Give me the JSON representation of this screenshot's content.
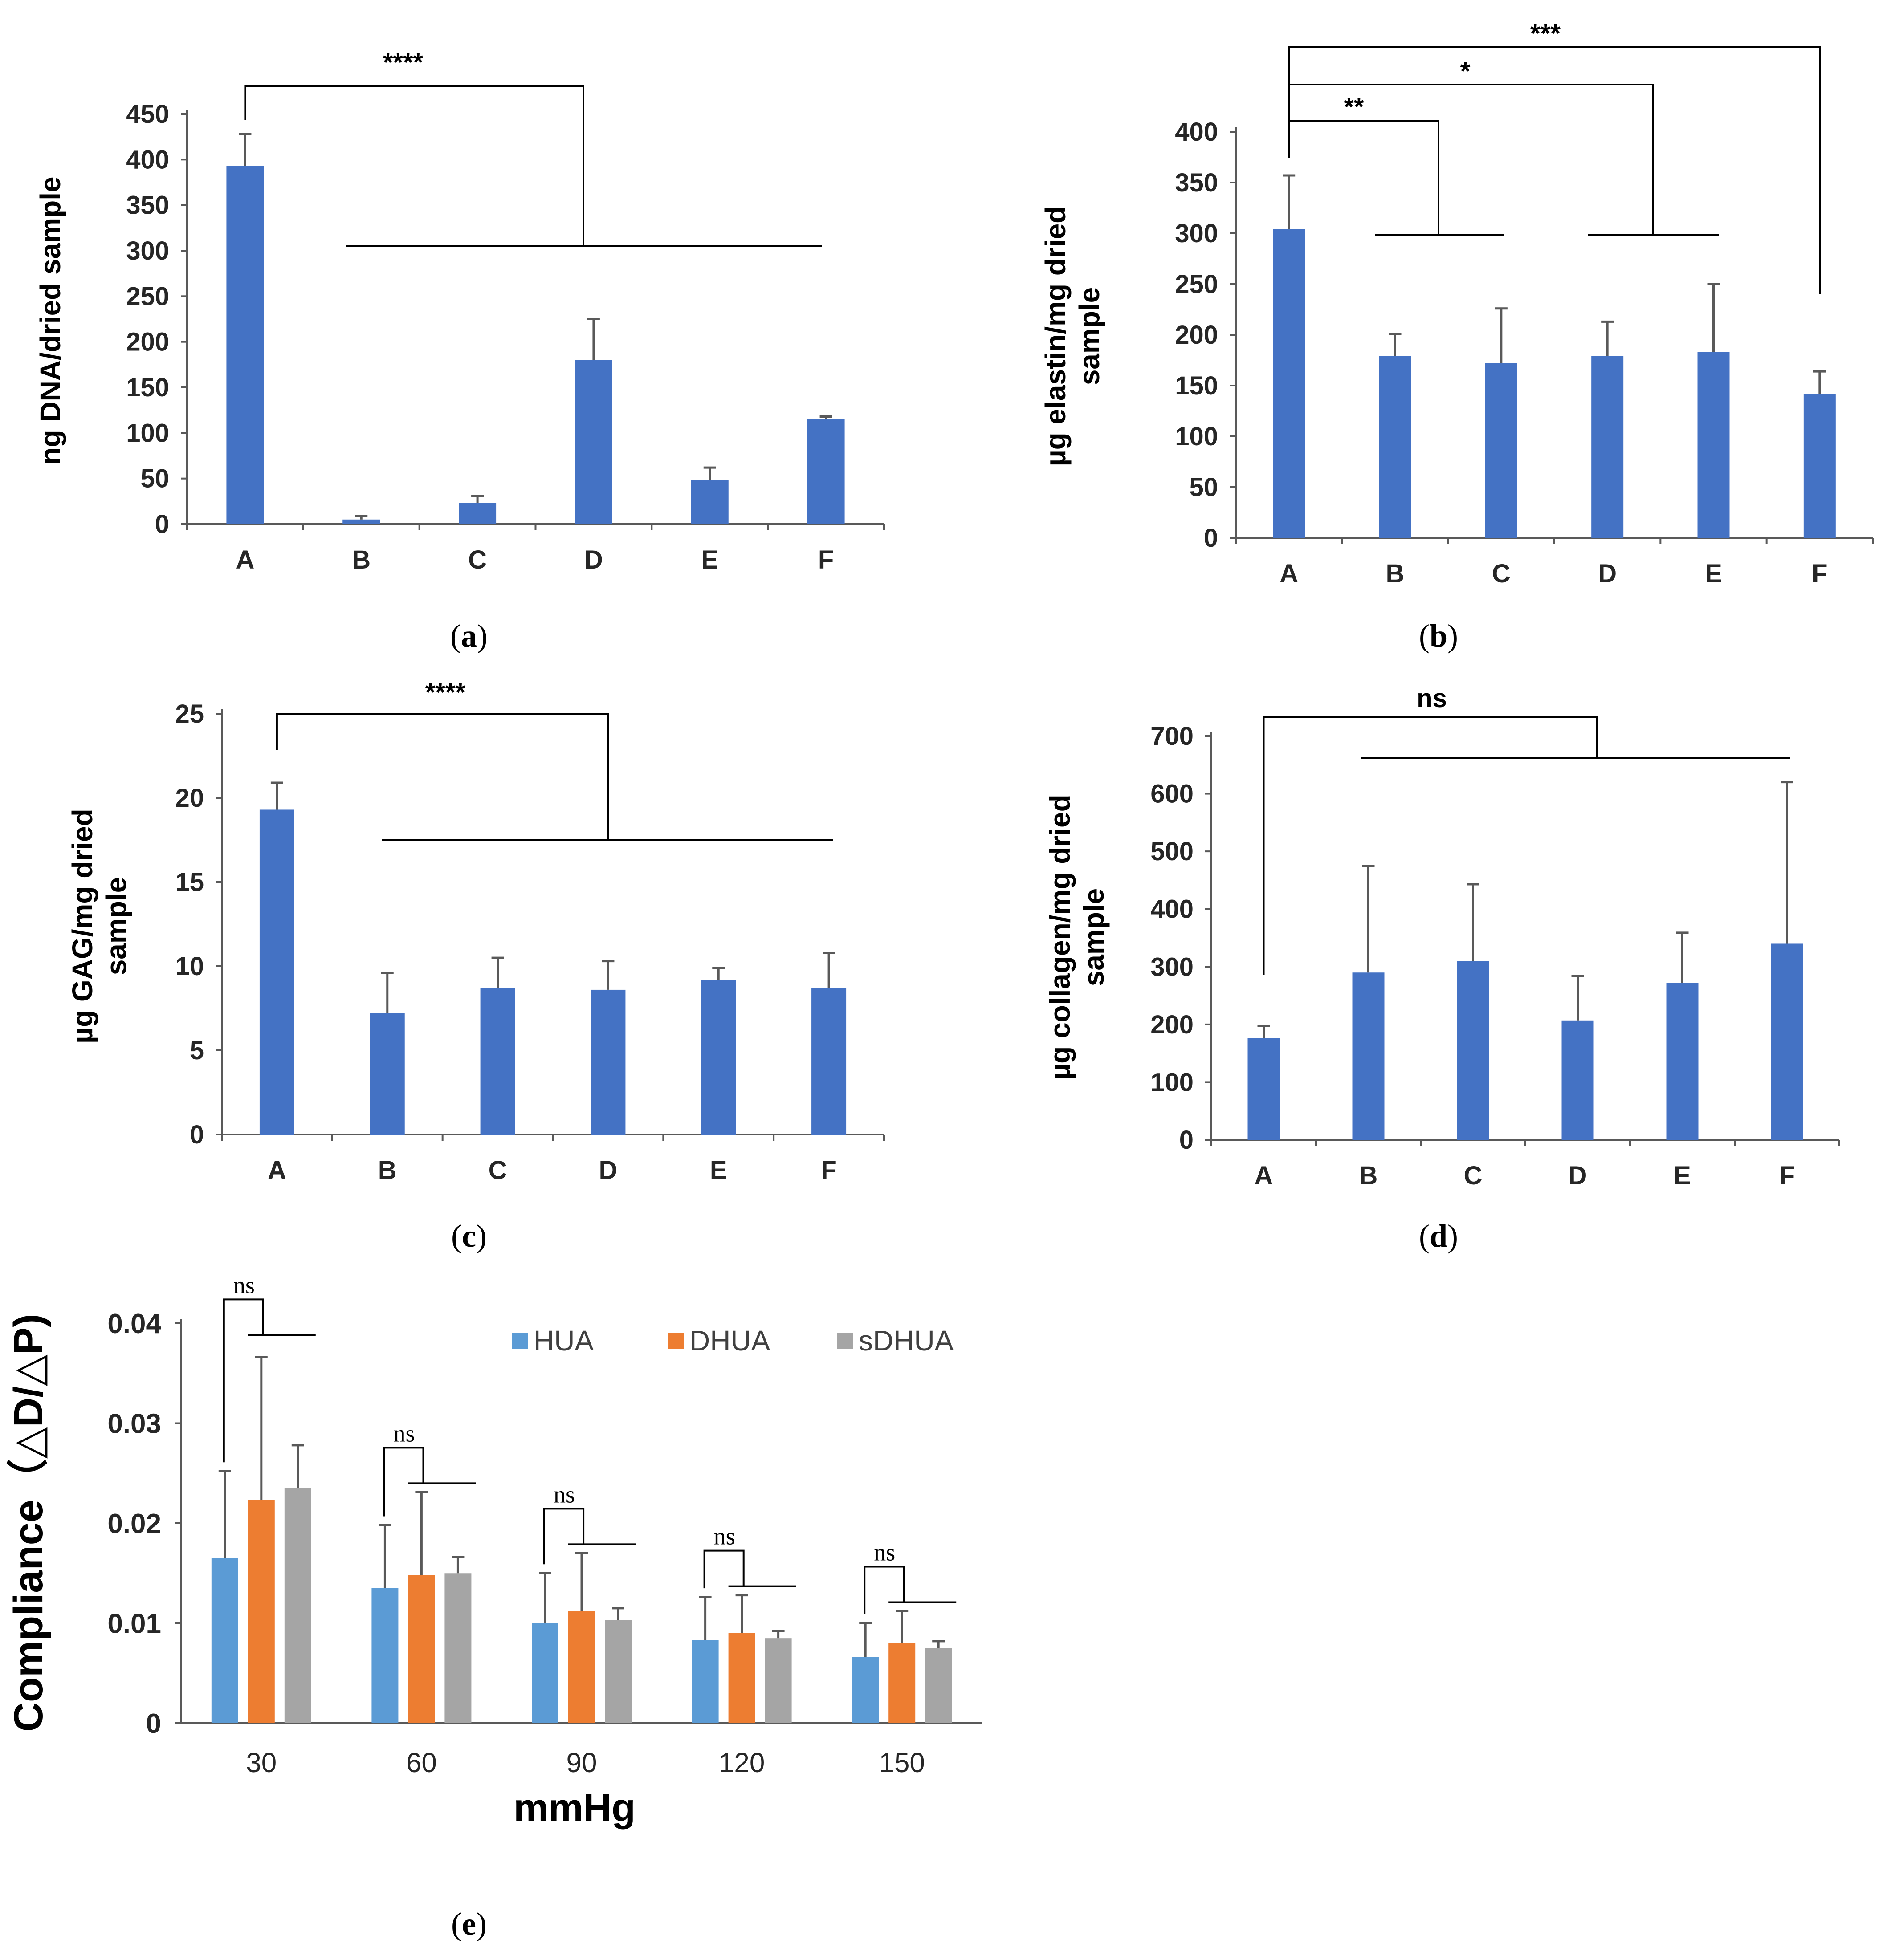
{
  "colors": {
    "bar": "#4472c4",
    "hua": "#5b9bd5",
    "dhua": "#ed7d31",
    "sdhua": "#a5a5a5",
    "axis": "#595959",
    "error": "#595959"
  },
  "chart_data": [
    {
      "id": "a",
      "type": "bar",
      "caption": "a",
      "ylabel": "ng DNA/dried sample",
      "categories": [
        "A",
        "B",
        "C",
        "D",
        "E",
        "F"
      ],
      "values": [
        393,
        5,
        23,
        180,
        48,
        115
      ],
      "errors": [
        35,
        4,
        8,
        45,
        14,
        3
      ],
      "ylim": [
        0,
        450
      ],
      "yticks": [
        "0",
        "50",
        "100",
        "150",
        "200",
        "250",
        "300",
        "350",
        "400",
        "450"
      ],
      "significance": [
        {
          "label": "****"
        }
      ]
    },
    {
      "id": "b",
      "type": "bar",
      "caption": "b",
      "ylabel_lines": [
        "µg elastin/mg dried",
        "sample"
      ],
      "categories": [
        "A",
        "B",
        "C",
        "D",
        "E",
        "F"
      ],
      "values": [
        304,
        179,
        172,
        179,
        183,
        142
      ],
      "errors": [
        53,
        22,
        54,
        34,
        67,
        22
      ],
      "ylim": [
        0,
        400
      ],
      "yticks": [
        "0",
        "50",
        "100",
        "150",
        "200",
        "250",
        "300",
        "350",
        "400"
      ],
      "significance": [
        {
          "label": "**"
        },
        {
          "label": "*"
        },
        {
          "label": "***"
        }
      ]
    },
    {
      "id": "c",
      "type": "bar",
      "caption": "c",
      "ylabel_lines": [
        "µg GAG/mg dried",
        "sample"
      ],
      "categories": [
        "A",
        "B",
        "C",
        "D",
        "E",
        "F"
      ],
      "values": [
        19.3,
        7.2,
        8.7,
        8.6,
        9.2,
        8.7
      ],
      "errors": [
        1.6,
        2.4,
        1.8,
        1.7,
        0.7,
        2.1
      ],
      "ylim": [
        0,
        25
      ],
      "yticks": [
        "0",
        "5",
        "10",
        "15",
        "20",
        "25"
      ],
      "significance": [
        {
          "label": "****"
        }
      ]
    },
    {
      "id": "d",
      "type": "bar",
      "caption": "d",
      "ylabel_lines": [
        "µg collagen/mg dried",
        "sample"
      ],
      "categories": [
        "A",
        "B",
        "C",
        "D",
        "E",
        "F"
      ],
      "values": [
        176,
        290,
        310,
        207,
        272,
        340
      ],
      "errors": [
        22,
        185,
        133,
        77,
        87,
        280
      ],
      "ylim": [
        0,
        700
      ],
      "yticks": [
        "0",
        "100",
        "200",
        "300",
        "400",
        "500",
        "600",
        "700"
      ],
      "significance": [
        {
          "label": "ns"
        }
      ]
    },
    {
      "id": "e",
      "type": "bar",
      "caption": "e",
      "ylabel": "Compliance（△D/△P)",
      "xlabel": "mmHg",
      "categories": [
        "30",
        "60",
        "90",
        "120",
        "150"
      ],
      "series": [
        {
          "name": "HUA",
          "values": [
            0.0165,
            0.0135,
            0.01,
            0.0083,
            0.0066
          ],
          "errors": [
            0.0087,
            0.0063,
            0.005,
            0.0043,
            0.0034
          ]
        },
        {
          "name": "DHUA",
          "values": [
            0.0223,
            0.0148,
            0.0112,
            0.009,
            0.008
          ],
          "errors": [
            0.0143,
            0.0083,
            0.0058,
            0.0038,
            0.0032
          ]
        },
        {
          "name": "sDHUA",
          "values": [
            0.0235,
            0.015,
            0.0103,
            0.0085,
            0.0075
          ],
          "errors": [
            0.0043,
            0.0016,
            0.0012,
            0.0007,
            0.0007
          ]
        }
      ],
      "ylim": [
        0,
        0.04
      ],
      "yticks": [
        "0",
        "0.01",
        "0.02",
        "0.03",
        "0.04"
      ],
      "significance": [
        {
          "label": "ns"
        },
        {
          "label": "ns"
        },
        {
          "label": "ns"
        },
        {
          "label": "ns"
        },
        {
          "label": "ns"
        }
      ]
    }
  ]
}
